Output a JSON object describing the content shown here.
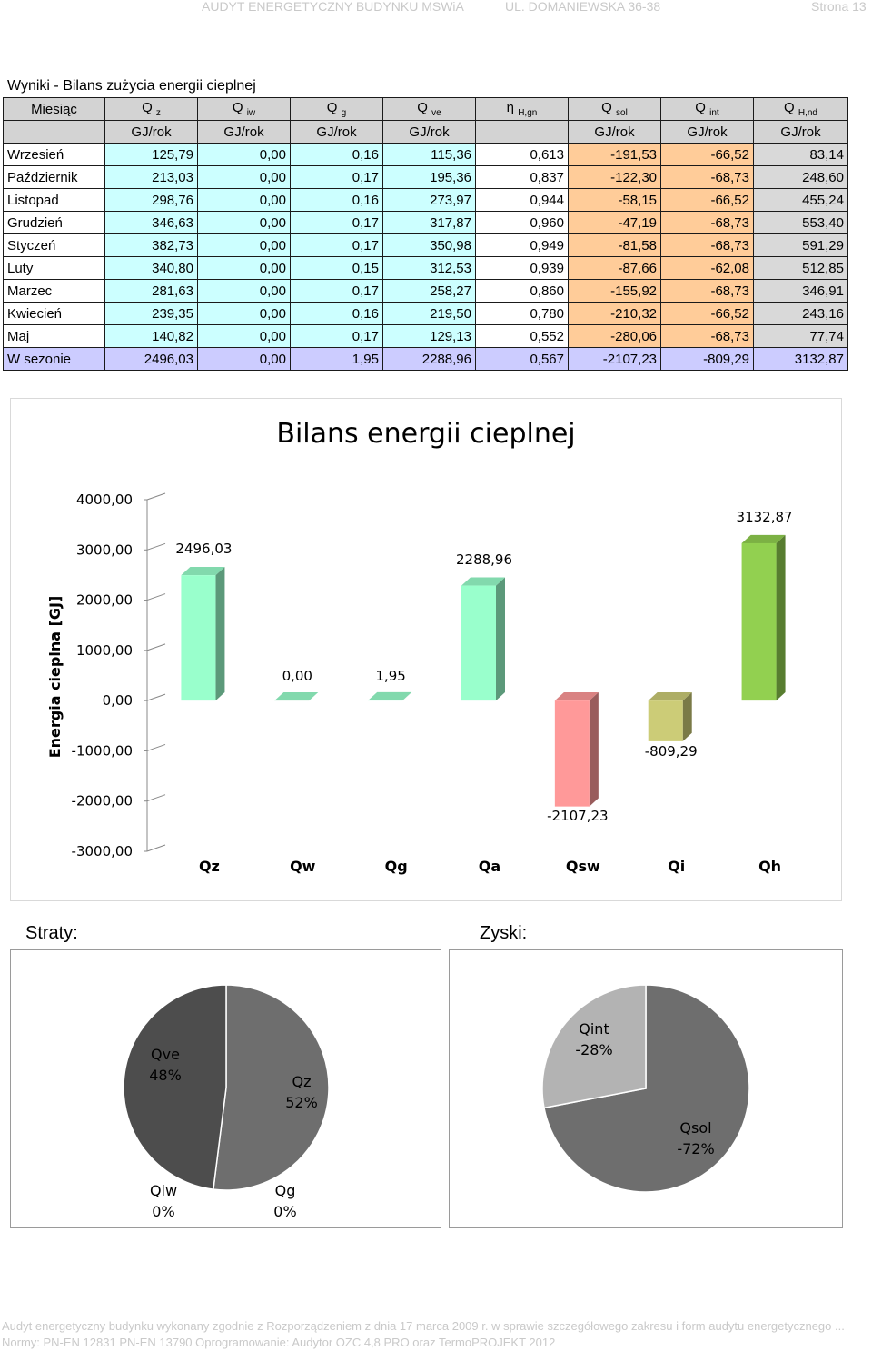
{
  "header": {
    "left": "AUDYT ENERGETYCZNY BUDYNKU MSWiA",
    "mid": "UL. DOMANIEWSKA 36-38",
    "right": "Strona 13"
  },
  "table": {
    "title": "Wyniki - Bilans zużycia energii cieplnej",
    "month_header": "Miesiąc",
    "columns": [
      {
        "base": "Q",
        "sub": "z",
        "unit": "GJ/rok"
      },
      {
        "base": "Q",
        "sub": "iw",
        "unit": "GJ/rok"
      },
      {
        "base": "Q",
        "sub": "g",
        "unit": "GJ/rok"
      },
      {
        "base": "Q",
        "sub": "ve",
        "unit": "GJ/rok"
      },
      {
        "base": "η",
        "sub": "H,gn",
        "unit": ""
      },
      {
        "base": "Q",
        "sub": "sol",
        "unit": "GJ/rok"
      },
      {
        "base": "Q",
        "sub": "int",
        "unit": "GJ/rok"
      },
      {
        "base": "Q",
        "sub": "H,nd",
        "unit": "GJ/rok"
      }
    ],
    "rows": [
      {
        "month": "Wrzesień",
        "values": [
          "125,79",
          "0,00",
          "0,16",
          "115,36",
          "0,613",
          "-191,53",
          "-66,52",
          "83,14"
        ]
      },
      {
        "month": "Październik",
        "values": [
          "213,03",
          "0,00",
          "0,17",
          "195,36",
          "0,837",
          "-122,30",
          "-68,73",
          "248,60"
        ]
      },
      {
        "month": "Listopad",
        "values": [
          "298,76",
          "0,00",
          "0,16",
          "273,97",
          "0,944",
          "-58,15",
          "-66,52",
          "455,24"
        ]
      },
      {
        "month": "Grudzień",
        "values": [
          "346,63",
          "0,00",
          "0,17",
          "317,87",
          "0,960",
          "-47,19",
          "-68,73",
          "553,40"
        ]
      },
      {
        "month": "Styczeń",
        "values": [
          "382,73",
          "0,00",
          "0,17",
          "350,98",
          "0,949",
          "-81,58",
          "-68,73",
          "591,29"
        ]
      },
      {
        "month": "Luty",
        "values": [
          "340,80",
          "0,00",
          "0,15",
          "312,53",
          "0,939",
          "-87,66",
          "-62,08",
          "512,85"
        ]
      },
      {
        "month": "Marzec",
        "values": [
          "281,63",
          "0,00",
          "0,17",
          "258,27",
          "0,860",
          "-155,92",
          "-68,73",
          "346,91"
        ]
      },
      {
        "month": "Kwiecień",
        "values": [
          "239,35",
          "0,00",
          "0,16",
          "219,50",
          "0,780",
          "-210,32",
          "-66,52",
          "243,16"
        ]
      },
      {
        "month": "Maj",
        "values": [
          "140,82",
          "0,00",
          "0,17",
          "129,13",
          "0,552",
          "-280,06",
          "-68,73",
          "77,74"
        ]
      }
    ],
    "total": {
      "month": "W sezonie",
      "values": [
        "2496,03",
        "0,00",
        "1,95",
        "2288,96",
        "0,567",
        "-2107,23",
        "-809,29",
        "3132,87"
      ]
    }
  },
  "chart_data": [
    {
      "type": "bar",
      "title": "Bilans energii cieplnej",
      "ylabel": "Energia cieplna [GJ]",
      "xlabel": "",
      "categories": [
        "Qz",
        "Qw",
        "Qg",
        "Qa",
        "Qsw",
        "Qi",
        "Qh"
      ],
      "values": [
        2496.03,
        0.0,
        1.95,
        2288.96,
        -2107.23,
        -809.29,
        3132.87
      ],
      "data_labels": [
        "2496,03",
        "0,00",
        "1,95",
        "2288,96",
        "-2107,23",
        "-809,29",
        "3132,87"
      ],
      "ylim": [
        -3000,
        4000
      ],
      "y_ticks": [
        -3000,
        -2000,
        -1000,
        0,
        1000,
        2000,
        3000,
        4000
      ],
      "y_tick_labels": [
        "-3000,00",
        "-2000,00",
        "-1000,00",
        "0,00",
        "1000,00",
        "2000,00",
        "3000,00",
        "4000,00"
      ],
      "colors": [
        "#99ffcc",
        "#99ffcc",
        "#99ffcc",
        "#99ffcc",
        "#ff9999",
        "#cccc77",
        "#92d050"
      ],
      "grid": false,
      "style": "3d"
    },
    {
      "type": "pie",
      "title": "Straty:",
      "labels": [
        "Qz",
        "Qiw",
        "Qg",
        "Qve"
      ],
      "values": [
        52,
        0,
        0,
        48
      ],
      "value_labels": [
        "52%",
        "0%",
        "0%",
        "48%"
      ],
      "colors": [
        "#6e6e6e",
        "#6e6e6e",
        "#6e6e6e",
        "#4d4d4d"
      ]
    },
    {
      "type": "pie",
      "title": "Zyski:",
      "labels": [
        "Qsol",
        "Qint"
      ],
      "values": [
        -72,
        -28
      ],
      "value_labels": [
        "-72%",
        "-28%"
      ],
      "colors": [
        "#6e6e6e",
        "#b3b3b3"
      ]
    }
  ],
  "footer": {
    "line1": "Audyt energetyczny budynku wykonany zgodnie z Rozporządzeniem z dnia 17 marca 2009 r. w sprawie szczegółowego zakresu i form audytu energetycznego ...",
    "line2": "Normy: PN-EN 12831 PN-EN 13790 Oprogramowanie: Audytor OZC 4,8 PRO oraz TermoPROJEKT 2012"
  }
}
